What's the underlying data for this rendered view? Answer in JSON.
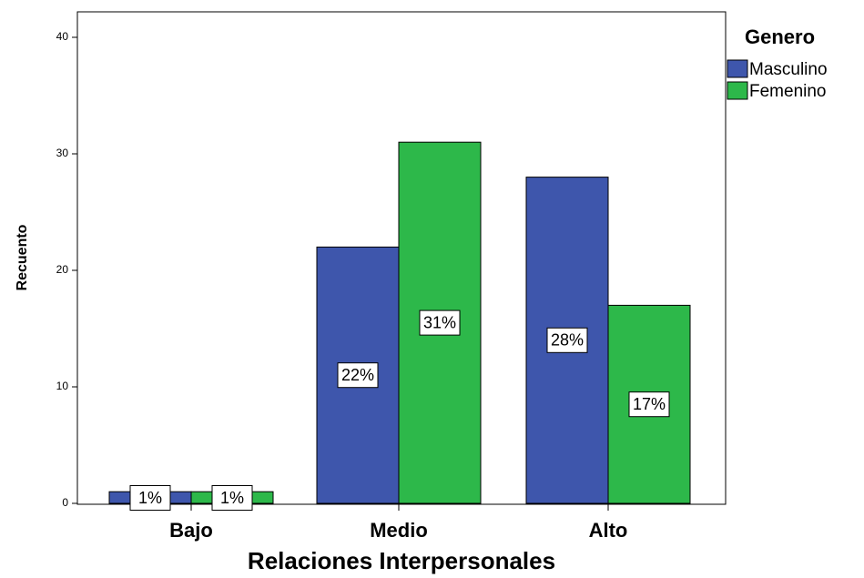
{
  "chart_data": {
    "type": "bar",
    "title": "",
    "xlabel": "Relaciones Interpersonales",
    "ylabel": "Recuento",
    "categories": [
      "Bajo",
      "Medio",
      "Alto"
    ],
    "ylim": [
      0,
      42
    ],
    "yticks": [
      0,
      10,
      20,
      30,
      40
    ],
    "grid": false,
    "legend": {
      "title": "Genero",
      "position": "top-right"
    },
    "series": [
      {
        "name": "Masculino",
        "color": "#3E56AC",
        "values": [
          1,
          22,
          28
        ],
        "labels": [
          "1%",
          "22%",
          "28%"
        ]
      },
      {
        "name": "Femenino",
        "color": "#2DB84A",
        "values": [
          1,
          31,
          17
        ],
        "labels": [
          "1%",
          "31%",
          "17%"
        ]
      }
    ]
  }
}
